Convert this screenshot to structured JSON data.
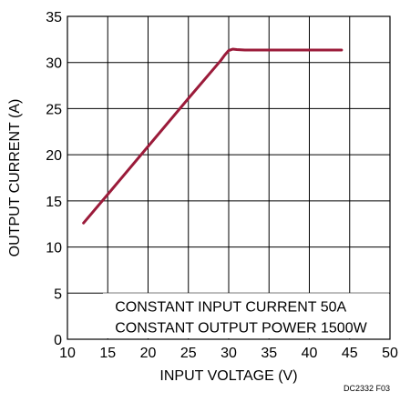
{
  "chart_data": {
    "type": "line",
    "title": "",
    "xlabel": "INPUT VOLTAGE (V)",
    "ylabel": "OUTPUT CURRENT (A)",
    "xlim": [
      10,
      50
    ],
    "ylim": [
      0,
      35
    ],
    "x_ticks": [
      10,
      15,
      20,
      25,
      30,
      35,
      40,
      45,
      50
    ],
    "y_ticks": [
      0,
      5,
      10,
      15,
      20,
      25,
      30,
      35
    ],
    "grid": true,
    "series": [
      {
        "color": "#9b1b3a",
        "points": [
          [
            12,
            12.6
          ],
          [
            15,
            15.7
          ],
          [
            20,
            20.9
          ],
          [
            25,
            26.1
          ],
          [
            29,
            30.2
          ],
          [
            29.5,
            30.8
          ],
          [
            30,
            31.3
          ],
          [
            30.5,
            31.45
          ],
          [
            31,
            31.4
          ],
          [
            32,
            31.35
          ],
          [
            35,
            31.35
          ],
          [
            40,
            31.35
          ],
          [
            44,
            31.35
          ]
        ]
      }
    ],
    "annotations": [
      "CONSTANT INPUT CURRENT 50A",
      "CONSTANT OUTPUT POWER 1500W"
    ],
    "figure_id": "DC2332 F03"
  }
}
